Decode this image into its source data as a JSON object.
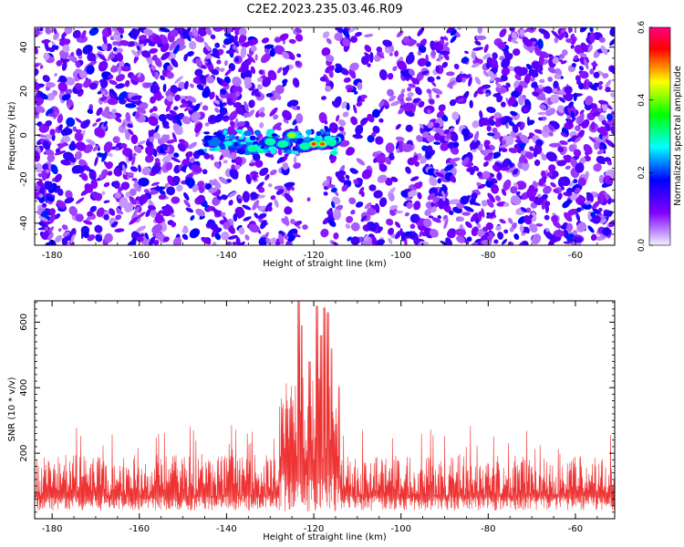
{
  "title": "C2E2.2023.235.03.46.R09",
  "chart_data": [
    {
      "type": "heatmap",
      "xlabel": "Height of straight line (km)",
      "ylabel": "Frequency (Hz)",
      "xlim": [
        -184,
        -51
      ],
      "ylim": [
        -50,
        49
      ],
      "xticks": [
        -180,
        -160,
        -140,
        -120,
        -100,
        -80,
        -60
      ],
      "yticks": [
        -40,
        -20,
        0,
        20,
        40
      ],
      "colorbar": {
        "label": "Normalized spectral amplitude",
        "range": [
          0.0,
          0.6
        ],
        "ticks": [
          0.0,
          0.2,
          0.4,
          0.6
        ],
        "colors": [
          "#f4f0ff",
          "#8000ff",
          "#0000ff",
          "#00ffff",
          "#00ff00",
          "#ffff00",
          "#ff0000",
          "#ff0080"
        ]
      },
      "gap_x": [
        -123,
        -118
      ],
      "hotspots": [
        {
          "x": -143,
          "y": -3,
          "value": 0.22
        },
        {
          "x": -138,
          "y": -4,
          "value": 0.25
        },
        {
          "x": -134,
          "y": -6,
          "value": 0.3
        },
        {
          "x": -130,
          "y": -3,
          "value": 0.35
        },
        {
          "x": -127,
          "y": -4,
          "value": 0.3
        },
        {
          "x": -125,
          "y": 0,
          "value": 0.45
        },
        {
          "x": -122,
          "y": -5,
          "value": 0.38
        },
        {
          "x": -120,
          "y": -4,
          "value": 0.6
        },
        {
          "x": -118,
          "y": -4,
          "value": 0.52
        },
        {
          "x": -116,
          "y": -3,
          "value": 0.3
        }
      ]
    },
    {
      "type": "line",
      "xlabel": "Height of straight line (km)",
      "ylabel": "SNR (10 * v/v)",
      "xlim": [
        -184,
        -51
      ],
      "ylim": [
        0,
        665
      ],
      "xticks": [
        -180,
        -160,
        -140,
        -120,
        -100,
        -80,
        -60
      ],
      "yticks": [
        200,
        400,
        600
      ],
      "color": "#ee3333",
      "baseline": {
        "low": 25,
        "high": 195
      },
      "noise_peak_max": 290,
      "peaks": [
        {
          "x": -123.5,
          "y": 665
        },
        {
          "x": -122.8,
          "y": 590
        },
        {
          "x": -121.0,
          "y": 480
        },
        {
          "x": -119.2,
          "y": 650
        },
        {
          "x": -118.3,
          "y": 560
        },
        {
          "x": -117.6,
          "y": 645
        },
        {
          "x": -116.8,
          "y": 630
        },
        {
          "x": -115.9,
          "y": 520
        }
      ],
      "peak_region": [
        -128,
        -114
      ]
    }
  ]
}
